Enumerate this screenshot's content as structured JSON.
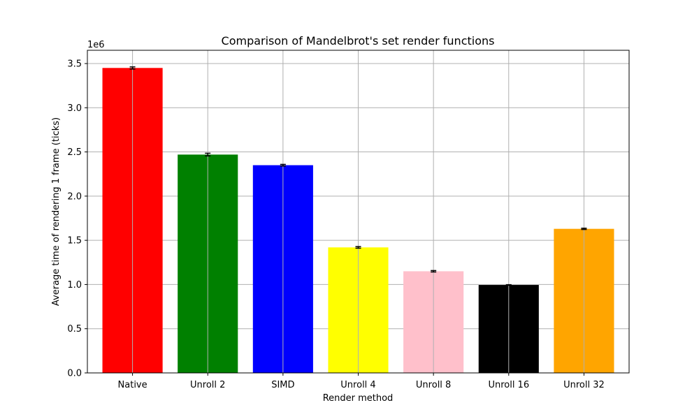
{
  "chart_data": {
    "type": "bar",
    "title": "Comparison of Mandelbrot's set render functions",
    "xlabel": "Render method",
    "ylabel": "Average time of rendering 1 frame (ticks)",
    "y_offset_label": "1e6",
    "y_scale": 1000000,
    "ylim": [
      0,
      3650000
    ],
    "y_ticks": [
      0,
      500000,
      1000000,
      1500000,
      2000000,
      2500000,
      3000000,
      3500000
    ],
    "y_tick_labels": [
      "0.0",
      "0.5",
      "1.0",
      "1.5",
      "2.0",
      "2.5",
      "3.0",
      "3.5"
    ],
    "grid": true,
    "categories": [
      "Native",
      "Unroll 2",
      "SIMD",
      "Unroll 4",
      "Unroll 8",
      "Unroll 16",
      "Unroll 32"
    ],
    "values": [
      3450000,
      2470000,
      2350000,
      1420000,
      1150000,
      995000,
      1630000
    ],
    "errors": [
      12000,
      15000,
      9000,
      9000,
      8000,
      3000,
      7000
    ],
    "colors": [
      "#ff0000",
      "#008000",
      "#0000ff",
      "#ffff00",
      "#ffc0cb",
      "#000000",
      "#ffa500"
    ]
  }
}
